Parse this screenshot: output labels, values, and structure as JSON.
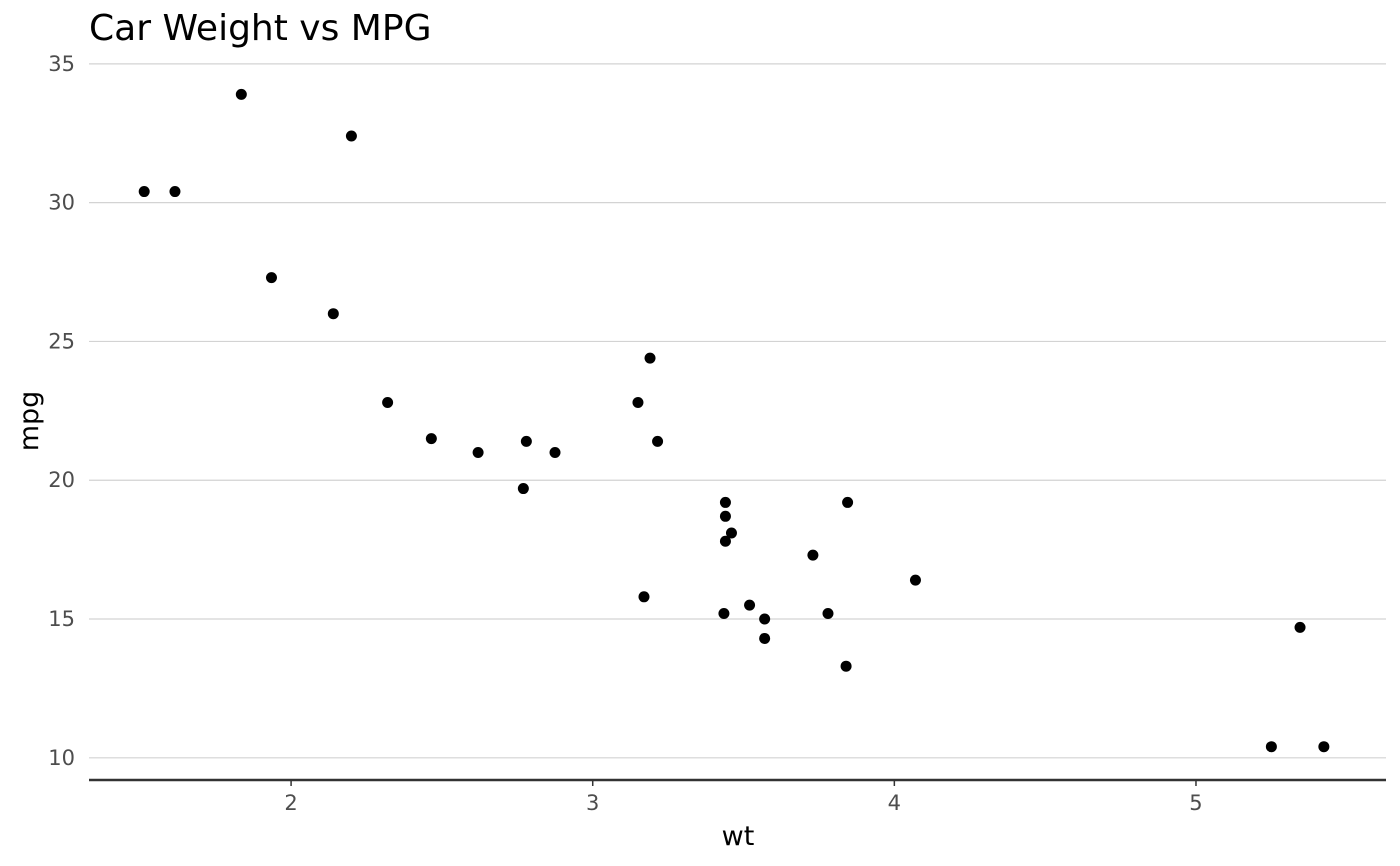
{
  "chart_data": {
    "type": "scatter",
    "title": "Car Weight vs MPG",
    "xlabel": "wt",
    "ylabel": "mpg",
    "xlim": [
      1.33,
      5.63
    ],
    "ylim": [
      9.2,
      35.5
    ],
    "xticks": [
      2,
      3,
      4,
      5
    ],
    "yticks": [
      10,
      15,
      20,
      25,
      30,
      35
    ],
    "grid": "horizontal",
    "colors": {
      "point": "#000000",
      "grid": "#d3d3d3",
      "axis": "#333333",
      "tick_text": "#4d4d4d"
    },
    "points": [
      {
        "x": 2.62,
        "y": 21.0
      },
      {
        "x": 2.875,
        "y": 21.0
      },
      {
        "x": 2.32,
        "y": 22.8
      },
      {
        "x": 3.215,
        "y": 21.4
      },
      {
        "x": 3.44,
        "y": 18.7
      },
      {
        "x": 3.46,
        "y": 18.1
      },
      {
        "x": 3.57,
        "y": 14.3
      },
      {
        "x": 3.19,
        "y": 24.4
      },
      {
        "x": 3.15,
        "y": 22.8
      },
      {
        "x": 3.44,
        "y": 19.2
      },
      {
        "x": 3.44,
        "y": 17.8
      },
      {
        "x": 4.07,
        "y": 16.4
      },
      {
        "x": 3.73,
        "y": 17.3
      },
      {
        "x": 3.78,
        "y": 15.2
      },
      {
        "x": 5.25,
        "y": 10.4
      },
      {
        "x": 5.424,
        "y": 10.4
      },
      {
        "x": 5.345,
        "y": 14.7
      },
      {
        "x": 2.2,
        "y": 32.4
      },
      {
        "x": 1.615,
        "y": 30.4
      },
      {
        "x": 1.835,
        "y": 33.9
      },
      {
        "x": 2.465,
        "y": 21.5
      },
      {
        "x": 3.52,
        "y": 15.5
      },
      {
        "x": 3.435,
        "y": 15.2
      },
      {
        "x": 3.84,
        "y": 13.3
      },
      {
        "x": 3.845,
        "y": 19.2
      },
      {
        "x": 1.935,
        "y": 27.3
      },
      {
        "x": 2.14,
        "y": 26.0
      },
      {
        "x": 1.513,
        "y": 30.4
      },
      {
        "x": 3.17,
        "y": 15.8
      },
      {
        "x": 2.77,
        "y": 19.7
      },
      {
        "x": 3.57,
        "y": 15.0
      },
      {
        "x": 2.78,
        "y": 21.4
      }
    ]
  }
}
